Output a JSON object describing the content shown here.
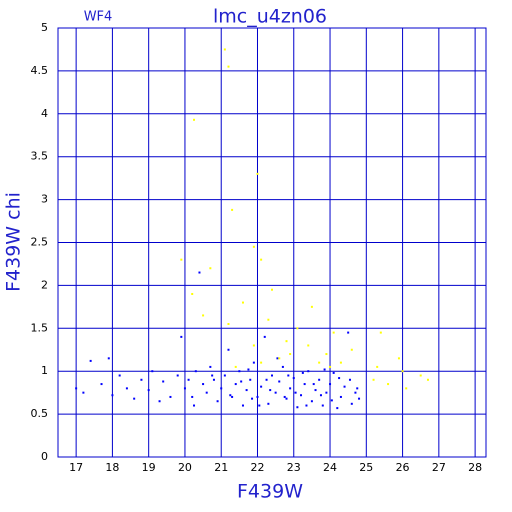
{
  "chart_data": {
    "type": "scatter",
    "title": "lmc_u4zn06",
    "subtitle": "WF4",
    "x_label": "F439W",
    "y_label": "F439W chi",
    "xlim": [
      16.5,
      28.3
    ],
    "ylim": [
      0,
      5
    ],
    "xticks": [
      17,
      18,
      19,
      20,
      21,
      22,
      23,
      24,
      25,
      26,
      27,
      28
    ],
    "yticks": [
      0,
      0.5,
      1,
      1.5,
      2,
      2.5,
      3,
      3.5,
      4,
      4.5,
      5
    ],
    "grid": true,
    "series": [
      {
        "color": "#0000ff",
        "x": [
          17.0,
          17.2,
          17.4,
          17.7,
          17.9,
          18.0,
          18.2,
          18.4,
          18.6,
          18.8,
          19.0,
          19.1,
          19.3,
          19.4,
          19.6,
          19.8,
          19.9,
          20.0,
          20.1,
          20.2,
          20.3,
          20.4,
          20.5,
          20.6,
          20.7,
          20.8,
          20.9,
          21.0,
          21.1,
          21.2,
          21.3,
          21.4,
          21.5,
          21.6,
          21.7,
          21.8,
          21.9,
          22.0,
          22.1,
          22.2,
          22.3,
          22.4,
          22.5,
          22.6,
          22.7,
          22.8,
          22.9,
          23.0,
          23.1,
          23.2,
          23.3,
          23.4,
          23.5,
          23.6,
          23.7,
          23.8,
          23.9,
          24.0,
          24.1,
          24.2,
          24.3,
          24.4,
          24.5,
          24.6,
          24.7,
          24.8,
          20.25,
          20.75,
          21.25,
          21.75,
          22.25,
          22.75,
          23.25,
          23.75,
          24.25,
          24.75,
          21.55,
          22.05,
          22.55,
          23.05,
          23.55,
          24.05,
          24.55,
          22.35,
          22.85,
          23.35,
          23.85,
          21.85
        ],
        "y": [
          0.8,
          0.75,
          1.12,
          0.85,
          1.15,
          0.72,
          0.95,
          0.8,
          0.68,
          0.9,
          0.78,
          1.0,
          0.65,
          0.88,
          0.7,
          0.95,
          1.4,
          0.8,
          0.9,
          0.7,
          1.0,
          2.15,
          0.85,
          0.75,
          1.05,
          0.9,
          0.65,
          0.8,
          0.95,
          1.25,
          0.7,
          0.85,
          1.0,
          0.6,
          0.78,
          0.9,
          1.1,
          0.7,
          0.82,
          1.4,
          0.62,
          0.95,
          0.75,
          0.88,
          1.05,
          0.68,
          0.8,
          0.92,
          0.58,
          0.72,
          0.85,
          1.0,
          0.65,
          0.78,
          0.9,
          0.6,
          0.75,
          0.85,
          0.98,
          0.57,
          0.7,
          0.82,
          1.45,
          0.62,
          0.75,
          0.68,
          0.6,
          0.95,
          0.72,
          1.02,
          0.9,
          0.7,
          0.98,
          0.72,
          0.92,
          0.8,
          0.88,
          0.6,
          1.15,
          0.75,
          0.85,
          0.66,
          0.9,
          0.78,
          0.95,
          0.6,
          1.02,
          0.68
        ]
      },
      {
        "color": "#ffff00",
        "x": [
          21.1,
          21.2,
          20.25,
          22.0,
          21.3,
          21.9,
          22.1,
          20.7,
          19.9,
          20.2,
          22.4,
          21.6,
          23.5,
          22.3,
          20.5,
          21.2,
          23.1,
          24.1,
          25.4,
          22.8,
          23.4,
          21.9,
          23.9,
          24.6,
          25.9,
          22.6,
          24.3,
          25.3,
          26.0,
          26.5,
          26.7,
          25.6,
          26.1,
          25.2,
          24.0,
          23.7,
          22.9,
          22.1,
          21.4
        ],
        "y": [
          4.75,
          4.55,
          3.93,
          3.3,
          2.88,
          2.45,
          2.3,
          2.2,
          2.3,
          1.9,
          1.95,
          1.8,
          1.75,
          1.6,
          1.65,
          1.55,
          1.5,
          1.45,
          1.45,
          1.35,
          1.3,
          1.3,
          1.2,
          1.25,
          1.15,
          1.15,
          1.1,
          1.05,
          1.0,
          0.95,
          0.9,
          0.85,
          0.8,
          0.9,
          1.05,
          1.1,
          1.2,
          1.1,
          1.05
        ]
      }
    ]
  }
}
